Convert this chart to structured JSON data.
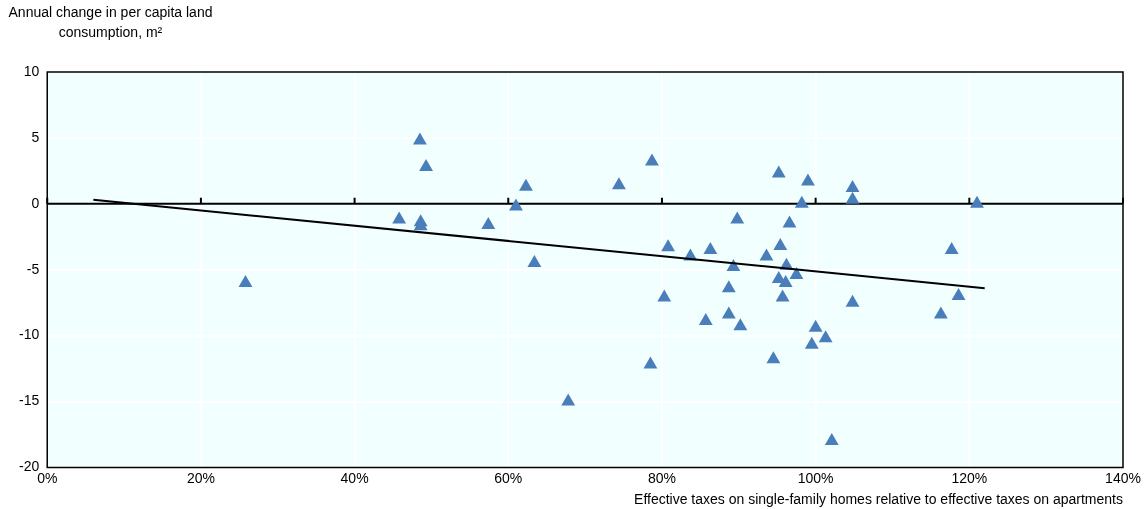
{
  "chart_data": {
    "type": "scatter",
    "xlabel": "Effective taxes on single-family homes relative to effective taxes on apartments",
    "ylabel": "Annual change in per capita land consumption, m²",
    "xlim": [
      0,
      140
    ],
    "xticks": [
      {
        "value": 0,
        "label": "0%"
      },
      {
        "value": 20,
        "label": "20%"
      },
      {
        "value": 40,
        "label": "40%"
      },
      {
        "value": 60,
        "label": "60%"
      },
      {
        "value": 80,
        "label": "80%"
      },
      {
        "value": 100,
        "label": "100%"
      },
      {
        "value": 120,
        "label": "120%"
      },
      {
        "value": 140,
        "label": "140%"
      }
    ],
    "ylim": [
      -20,
      10
    ],
    "yticks": [
      -20,
      -15,
      -10,
      -5,
      0,
      5,
      10
    ],
    "grid": true,
    "legend": false,
    "ref_lines": [
      {
        "axis": "y",
        "value": 0,
        "color": "#000000"
      }
    ],
    "series": [
      {
        "color": "#4a7ebb",
        "marker": "triangle",
        "x": [
          25.8,
          45.8,
          48.5,
          49.3,
          48.6,
          48.6,
          57.4,
          61.0,
          62.3,
          63.4,
          67.8,
          74.4,
          78.7,
          78.5,
          80.3,
          80.8,
          83.7,
          86.3,
          89.3,
          89.8,
          88.7,
          85.7,
          88.7,
          90.2,
          94.5,
          93.6,
          95.4,
          95.2,
          99.0,
          98.2,
          96.6,
          96.2,
          97.5,
          95.2,
          96.1,
          95.7,
          100.0,
          99.5,
          101.3,
          102.1,
          104.8,
          104.8,
          104.8,
          117.7,
          116.3,
          118.6,
          121.0
        ],
        "values": [
          -6.0,
          -1.2,
          4.8,
          2.8,
          -1.4,
          -1.7,
          -1.6,
          -0.2,
          1.3,
          -4.5,
          -15.0,
          1.4,
          3.2,
          -12.2,
          -7.1,
          -3.3,
          -4.0,
          -3.5,
          -4.8,
          -1.2,
          -6.4,
          -8.9,
          -8.4,
          -9.3,
          -11.8,
          -4.0,
          -3.2,
          2.3,
          1.7,
          0.0,
          -1.5,
          -4.7,
          -5.4,
          -5.7,
          -6.0,
          -7.1,
          -9.4,
          -10.7,
          -10.2,
          -18.0,
          1.2,
          0.3,
          -7.5,
          -3.5,
          -8.4,
          -7.0,
          0.0
        ]
      },
      {
        "type": "line",
        "color": "#000000",
        "marker": "none",
        "line_style": "solid",
        "x": [
          6.0,
          122.0
        ],
        "values": [
          0.3,
          -6.4
        ]
      }
    ]
  }
}
